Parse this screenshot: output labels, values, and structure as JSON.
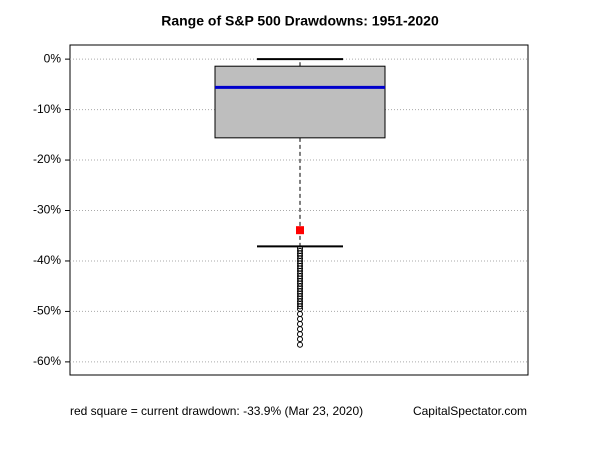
{
  "chart_data": {
    "type": "box",
    "title": "Range of S&P 500 Drawdowns: 1951-2020",
    "ylim": [
      -62.6,
      2.8
    ],
    "yticks": [
      {
        "value": 0,
        "label": "0%"
      },
      {
        "value": -10,
        "label": "-10%"
      },
      {
        "value": -20,
        "label": "-20%"
      },
      {
        "value": -30,
        "label": "-30%"
      },
      {
        "value": -40,
        "label": "-40%"
      },
      {
        "value": -50,
        "label": "-50%"
      },
      {
        "value": -60,
        "label": "-60%"
      }
    ],
    "grid": true,
    "box": {
      "whisker_high": 0,
      "q3": -1.4,
      "median": -5.6,
      "q1": -15.6,
      "whisker_low": -37.1
    },
    "box_color": "#bebebe",
    "median_color": "#0000cc",
    "outliers": [
      -37.5,
      -38,
      -38.5,
      -39,
      -39.5,
      -40,
      -40.5,
      -41,
      -41.5,
      -42,
      -42.5,
      -43,
      -43.5,
      -44,
      -44.5,
      -45,
      -45.5,
      -46,
      -46.5,
      -47,
      -47.5,
      -48,
      -48.5,
      -49,
      -49.5,
      -50.5,
      -51.5,
      -52.5,
      -53.5,
      -54.5,
      -55.5,
      -56.6
    ],
    "current": {
      "value": -33.9,
      "color": "#ff0000"
    },
    "annotation": "red square = current drawdown: -33.9% (Mar 23, 2020)",
    "source": "CapitalSpectator.com"
  }
}
